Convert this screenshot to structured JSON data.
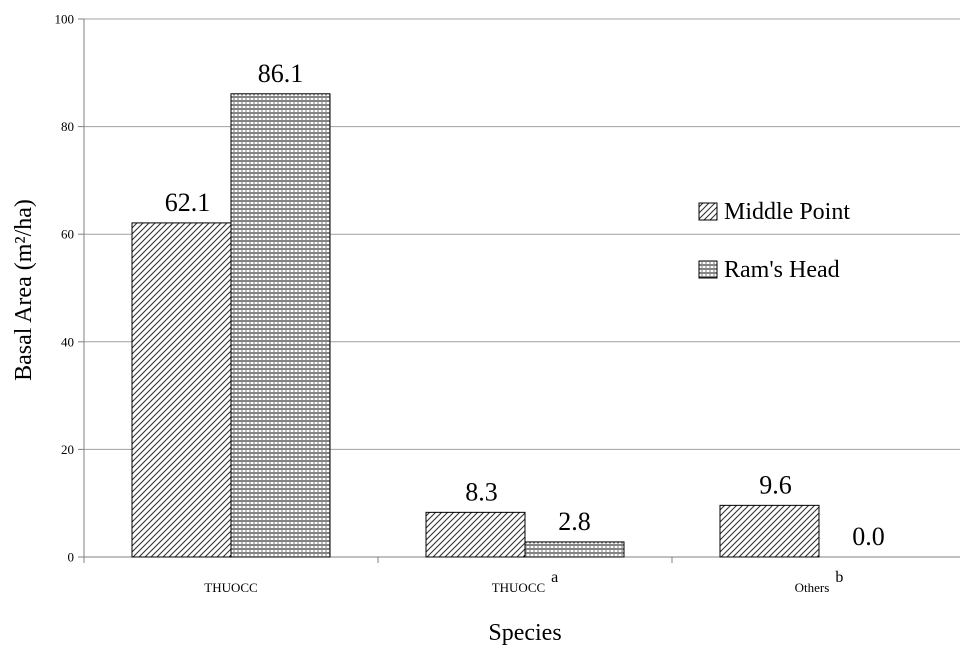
{
  "chart_data": {
    "type": "bar",
    "categories": [
      {
        "label": "THUOCC",
        "superscript": ""
      },
      {
        "label": "THUOCC",
        "superscript": "a"
      },
      {
        "label": "Others",
        "superscript": "b"
      }
    ],
    "series": [
      {
        "name": "Middle Point",
        "values": [
          62.1,
          8.3,
          9.6
        ],
        "labels": [
          "62.1",
          "8.3",
          "9.6"
        ],
        "pattern": "diagonal-hatch"
      },
      {
        "name": "Ram's Head",
        "values": [
          86.1,
          2.8,
          0.0
        ],
        "labels": [
          "86.1",
          "2.8",
          "0.0"
        ],
        "pattern": "horizontal-lines"
      }
    ],
    "xlabel": "Species",
    "ylabel": "Basal Area (m²/ha)",
    "ylim": [
      0,
      100
    ],
    "yticks": [
      0,
      20,
      40,
      60,
      80,
      100
    ],
    "grid": true,
    "legend_position": "right"
  }
}
